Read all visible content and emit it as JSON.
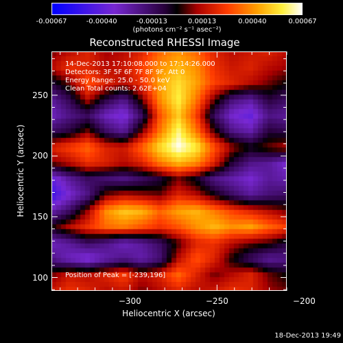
{
  "chart_data": {
    "type": "heatmap",
    "title": "Reconstructed RHESSI Image",
    "xlabel": "Heliocentric X (arcsec)",
    "ylabel": "Heliocentric Y (arcsec)",
    "xlim": [
      -345,
      -210
    ],
    "ylim": [
      89,
      286
    ],
    "x_ticks": [
      -300,
      -250,
      -200
    ],
    "y_ticks": [
      100,
      150,
      200,
      250
    ],
    "info_lines": [
      "14-Dec-2013 17:10:08.000 to 17:14:26.000",
      "Detectors: 3F 5F 6F 7F 8F 9F, Att 0",
      "Energy Range: 25.0 - 50.0 keV",
      "Clean    Total counts: 2.62E+04"
    ],
    "peak_label": "Position of Peak = [-239,196]",
    "peak": [
      -239,
      196
    ],
    "colorbar": {
      "ticks": [
        "-0.00067",
        "-0.00040",
        "-0.00013",
        "0.00013",
        "0.00040",
        "0.00067"
      ],
      "units": "(photons cm⁻² s⁻¹ asec⁻²)",
      "range": [
        -0.00067,
        0.00067
      ]
    },
    "grid": {
      "rows": 16,
      "cols": 14,
      "note_row_order": "top (y=286) to bottom (y=89)",
      "values": [
        [
          0.1,
          0.2,
          0.3,
          0.15,
          0.2,
          0.3,
          0.5,
          0.6,
          0.5,
          0.3,
          0.2,
          0.25,
          0.3,
          0.2
        ],
        [
          0.2,
          0.35,
          0.3,
          0.2,
          0.25,
          0.4,
          0.6,
          0.7,
          0.6,
          0.35,
          0.25,
          0.3,
          0.2,
          0.15
        ],
        [
          -0.1,
          0.1,
          0.45,
          0.3,
          0.2,
          0.35,
          0.65,
          0.8,
          0.65,
          0.4,
          0.3,
          0.2,
          0.1,
          0.0
        ],
        [
          -0.35,
          -0.15,
          0.2,
          -0.1,
          -0.3,
          0.1,
          0.6,
          0.85,
          0.55,
          0.1,
          -0.25,
          -0.35,
          -0.1,
          -0.2
        ],
        [
          -0.45,
          -0.3,
          -0.2,
          -0.45,
          -0.55,
          -0.2,
          0.45,
          0.75,
          0.4,
          -0.2,
          -0.5,
          -0.6,
          -0.3,
          -0.35
        ],
        [
          -0.2,
          -0.1,
          0.1,
          -0.2,
          -0.35,
          0.1,
          0.55,
          0.9,
          0.55,
          0.05,
          -0.3,
          -0.4,
          -0.1,
          -0.15
        ],
        [
          0.3,
          0.4,
          0.5,
          0.3,
          0.25,
          0.5,
          0.8,
          1.0,
          0.85,
          0.45,
          0.15,
          0.0,
          0.1,
          0.2
        ],
        [
          0.1,
          0.2,
          0.35,
          0.3,
          0.2,
          0.3,
          0.55,
          0.7,
          0.6,
          0.3,
          -0.1,
          -0.3,
          -0.35,
          -0.5
        ],
        [
          -0.6,
          -0.35,
          -0.2,
          -0.25,
          -0.3,
          -0.2,
          -0.1,
          0.1,
          -0.05,
          -0.3,
          -0.4,
          -0.5,
          -0.35,
          -0.4
        ],
        [
          -0.75,
          -0.5,
          -0.3,
          0.1,
          0.2,
          0.15,
          0.1,
          0.3,
          0.2,
          0.0,
          -0.2,
          -0.35,
          -0.25,
          -0.2
        ],
        [
          -0.4,
          -0.2,
          0.15,
          0.6,
          0.75,
          0.7,
          0.5,
          0.65,
          0.7,
          0.55,
          0.4,
          0.3,
          0.2,
          0.1
        ],
        [
          0.0,
          0.2,
          0.35,
          0.5,
          0.55,
          0.45,
          0.35,
          0.45,
          0.6,
          0.7,
          0.6,
          0.65,
          0.5,
          0.4
        ],
        [
          -0.45,
          -0.35,
          -0.2,
          -0.3,
          -0.45,
          -0.35,
          -0.2,
          0.05,
          0.3,
          0.35,
          0.2,
          0.1,
          0.05,
          -0.1
        ],
        [
          -0.3,
          -0.45,
          -0.55,
          -0.4,
          -0.3,
          -0.4,
          -0.25,
          0.2,
          0.45,
          0.3,
          0.0,
          -0.2,
          -0.35,
          -0.3
        ],
        [
          0.1,
          0.25,
          0.2,
          0.3,
          0.4,
          0.2,
          0.3,
          0.5,
          0.3,
          0.1,
          0.2,
          0.3,
          0.1,
          0.0
        ],
        [
          0.25,
          0.35,
          0.3,
          0.2,
          0.25,
          0.1,
          0.2,
          0.3,
          0.2,
          0.25,
          0.35,
          0.3,
          0.15,
          0.1
        ]
      ]
    }
  },
  "footer": {
    "date": "18-Dec-2013 19:49"
  }
}
